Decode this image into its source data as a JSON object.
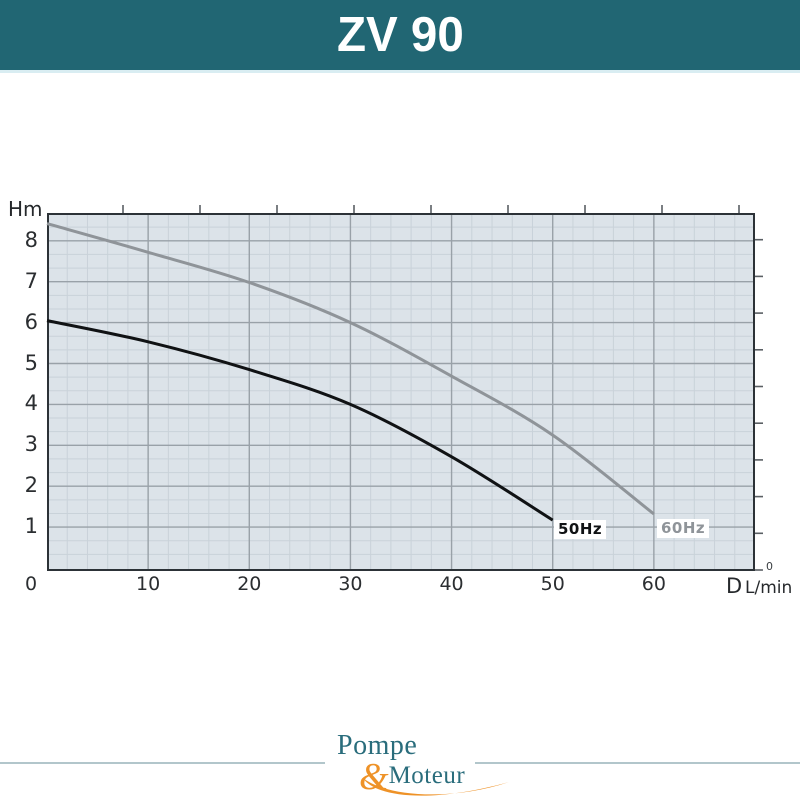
{
  "header": {
    "title": "ZV 90"
  },
  "chart": {
    "ylabel": "Hm",
    "x_axis_letter": "D",
    "x_axis_unit": "L/min",
    "right_axis_zero": "0",
    "x_ticks": [
      "0",
      "10",
      "20",
      "30",
      "40",
      "50",
      "60"
    ],
    "y_ticks": [
      "1",
      "2",
      "3",
      "4",
      "5",
      "6",
      "7",
      "8"
    ]
  },
  "chart_data": {
    "type": "line",
    "title": "ZV 90 pump performance curves",
    "xlabel": "D L/min",
    "ylabel": "Hm",
    "xlim": [
      0,
      70
    ],
    "ylim": [
      0,
      8.7
    ],
    "grid": "major+minor",
    "legend_position": "inline-end-of-curve",
    "series": [
      {
        "name": "50Hz",
        "color": "#101214",
        "points": [
          [
            0,
            6.05
          ],
          [
            10,
            5.53
          ],
          [
            20,
            4.85
          ],
          [
            30,
            4.0
          ],
          [
            40,
            2.72
          ],
          [
            50,
            1.17
          ]
        ]
      },
      {
        "name": "60Hz",
        "color": "#8f9499",
        "points": [
          [
            0,
            8.42
          ],
          [
            10,
            7.72
          ],
          [
            20,
            6.98
          ],
          [
            30,
            6.0
          ],
          [
            40,
            4.69
          ],
          [
            50,
            3.25
          ],
          [
            60,
            1.32
          ]
        ]
      }
    ]
  },
  "footer": {
    "brand_top": "Pompe",
    "brand_amp": "&",
    "brand_bottom": "Moteur"
  },
  "colors": {
    "header_bg": "#216673",
    "plot_bg": "#dce3e9",
    "grid_major": "#99a1a8",
    "grid_minor": "#c9d2d9",
    "brand_teal": "#2a6d7c",
    "brand_orange": "#ee9227"
  }
}
